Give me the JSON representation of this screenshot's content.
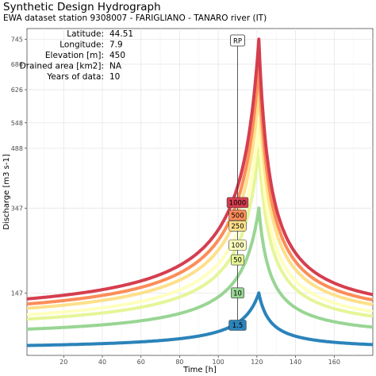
{
  "chart_data": {
    "type": "line",
    "title": "Synthetic Design Hydrograph",
    "subtitle": "EWA dataset station 9308007 - FARIGLIANO - TANARO river (IT)",
    "xlabel": "Time [h]",
    "ylabel": "Discharge [m3 s-1]",
    "xlim": [
      1,
      180
    ],
    "ylim": [
      0,
      770
    ],
    "x_ticks": [
      20,
      40,
      60,
      80,
      100,
      120,
      140,
      160
    ],
    "y_ticks": [
      147,
      347,
      488,
      548,
      626,
      686,
      745
    ],
    "grid": true,
    "peak_time": 121,
    "info": [
      {
        "label": "Latitude:",
        "value": "44.51"
      },
      {
        "label": "Longitude:",
        "value": "7.9"
      },
      {
        "label": "Elevation [m]:",
        "value": "450"
      },
      {
        "label": "Drained area [km2]:",
        "value": "NA"
      },
      {
        "label": "Years of data:",
        "value": "10"
      }
    ],
    "rp_marker": {
      "label": "RP",
      "x": 110
    },
    "series": [
      {
        "name": "1.5",
        "peak": 147,
        "base": 13,
        "label_y": 71,
        "color": "#2b83ba"
      },
      {
        "name": "10",
        "peak": 347,
        "base": 38,
        "label_y": 147,
        "color": "#99d594"
      },
      {
        "name": "50",
        "peak": 488,
        "base": 52,
        "label_y": 225,
        "color": "#e6f598"
      },
      {
        "name": "100",
        "peak": 548,
        "base": 58,
        "label_y": 260,
        "color": "#ffffbf"
      },
      {
        "name": "250",
        "peak": 626,
        "base": 68,
        "label_y": 305,
        "color": "#fee08b"
      },
      {
        "name": "500",
        "peak": 686,
        "base": 74,
        "label_y": 330,
        "color": "#fc8d59"
      },
      {
        "name": "1000",
        "peak": 745,
        "base": 82,
        "label_y": 360,
        "color": "#d53e4f"
      }
    ]
  }
}
